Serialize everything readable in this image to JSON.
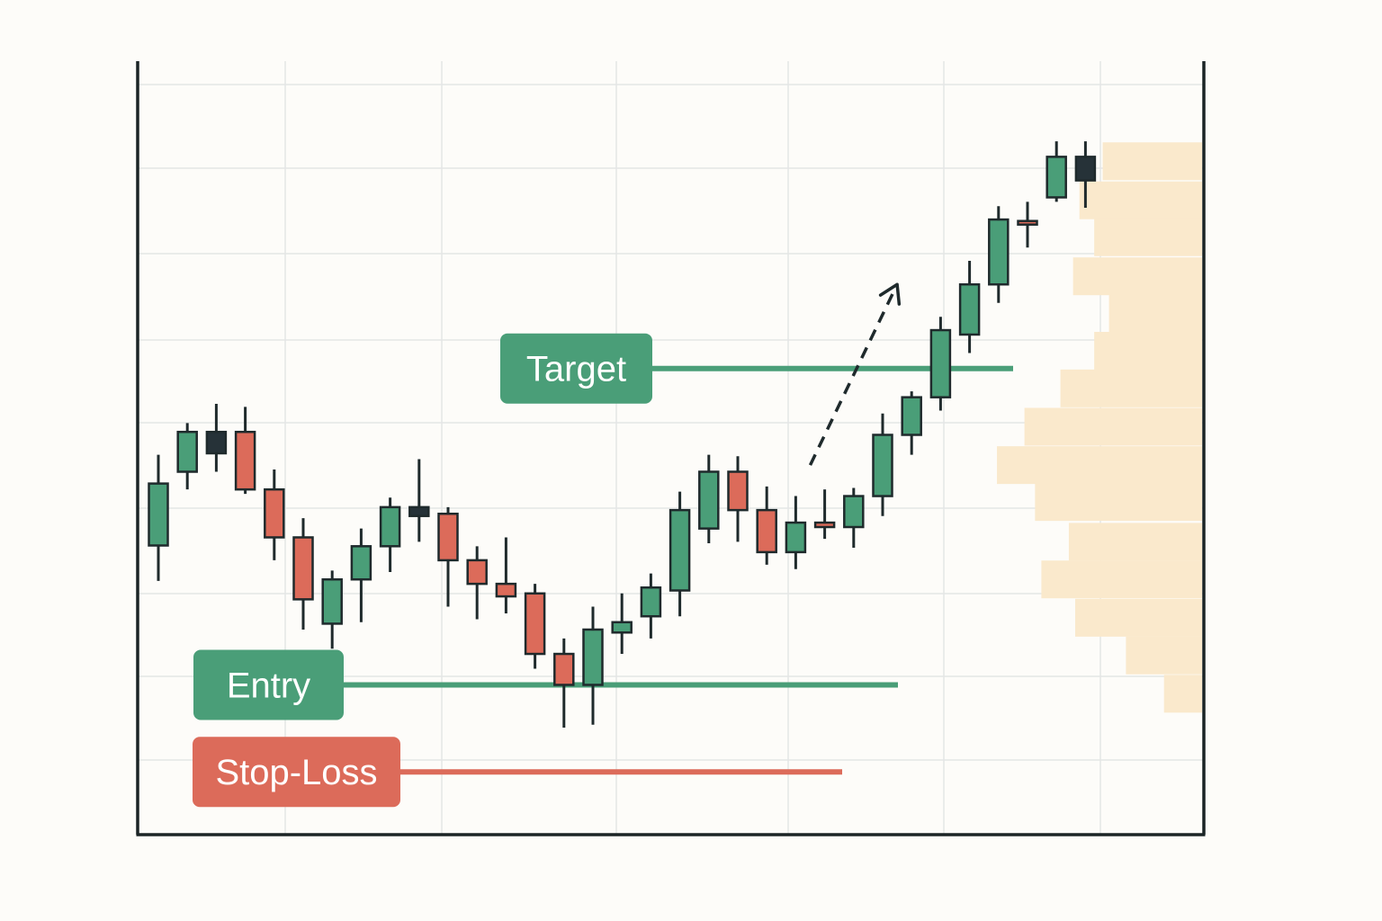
{
  "chart_data": {
    "type": "candlestick",
    "title": "",
    "xlabel": "",
    "ylabel": "",
    "ylim": [
      0,
      100
    ],
    "grid": true,
    "colors": {
      "up": "#4a9e78",
      "down": "#dc6b5a",
      "neutral": "#263238",
      "outline": "#1f2a2c",
      "target": "#4a9e78",
      "entry": "#4a9e78",
      "stop_loss": "#dc6b5a",
      "volume_profile": "#fae9cc",
      "grid": "#e4e6e6",
      "axis": "#1b2426"
    },
    "candles": [
      {
        "open": 37.5,
        "high": 49.8,
        "low": 32.7,
        "close": 45.9
      },
      {
        "open": 47.5,
        "high": 54.1,
        "low": 45.1,
        "close": 52.9
      },
      {
        "open": 52.9,
        "high": 56.7,
        "low": 47.5,
        "close": 50.0,
        "kind": "neutral"
      },
      {
        "open": 52.9,
        "high": 56.3,
        "low": 44.5,
        "close": 45.1
      },
      {
        "open": 45.1,
        "high": 47.8,
        "low": 35.5,
        "close": 38.6
      },
      {
        "open": 38.6,
        "high": 41.2,
        "low": 26.1,
        "close": 30.2
      },
      {
        "open": 26.9,
        "high": 34.1,
        "low": 23.5,
        "close": 32.9
      },
      {
        "open": 32.9,
        "high": 39.8,
        "low": 27.1,
        "close": 37.4
      },
      {
        "open": 37.4,
        "high": 44.0,
        "low": 33.9,
        "close": 42.7
      },
      {
        "open": 42.7,
        "high": 49.2,
        "low": 38.0,
        "close": 41.5,
        "kind": "neutral"
      },
      {
        "open": 41.8,
        "high": 42.7,
        "low": 29.2,
        "close": 35.5
      },
      {
        "open": 35.5,
        "high": 37.4,
        "low": 27.5,
        "close": 32.3
      },
      {
        "open": 32.3,
        "high": 38.6,
        "low": 28.3,
        "close": 30.6
      },
      {
        "open": 31.0,
        "high": 32.3,
        "low": 20.8,
        "close": 22.8
      },
      {
        "open": 22.8,
        "high": 24.9,
        "low": 12.8,
        "close": 18.6
      },
      {
        "open": 18.6,
        "high": 29.2,
        "low": 13.2,
        "close": 26.1
      },
      {
        "open": 25.7,
        "high": 31.0,
        "low": 22.8,
        "close": 27.1
      },
      {
        "open": 27.9,
        "high": 33.7,
        "low": 24.9,
        "close": 31.8
      },
      {
        "open": 31.4,
        "high": 44.8,
        "low": 27.9,
        "close": 42.3
      },
      {
        "open": 39.8,
        "high": 49.8,
        "low": 37.8,
        "close": 47.5
      },
      {
        "open": 47.5,
        "high": 49.6,
        "low": 38.0,
        "close": 42.3
      },
      {
        "open": 42.3,
        "high": 45.5,
        "low": 34.9,
        "close": 36.6
      },
      {
        "open": 36.6,
        "high": 44.2,
        "low": 34.3,
        "close": 40.6
      },
      {
        "open": 40.6,
        "high": 45.1,
        "low": 38.4,
        "close": 40.0
      },
      {
        "open": 40.0,
        "high": 45.3,
        "low": 37.2,
        "close": 44.2
      },
      {
        "open": 44.2,
        "high": 55.4,
        "low": 41.5,
        "close": 52.5
      },
      {
        "open": 52.5,
        "high": 58.4,
        "low": 49.8,
        "close": 57.6
      },
      {
        "open": 57.6,
        "high": 68.5,
        "low": 55.8,
        "close": 66.7
      },
      {
        "open": 66.1,
        "high": 76.1,
        "low": 63.6,
        "close": 72.9
      },
      {
        "open": 72.9,
        "high": 83.5,
        "low": 70.4,
        "close": 81.7
      },
      {
        "open": 81.5,
        "high": 84.1,
        "low": 77.9,
        "close": 81.1
      },
      {
        "open": 84.7,
        "high": 92.3,
        "low": 84.1,
        "close": 90.2
      },
      {
        "open": 87.0,
        "high": 92.3,
        "low": 83.3,
        "close": 90.2,
        "kind": "neutral"
      }
    ],
    "levels": [
      {
        "id": "target",
        "label": "Target",
        "value": 61.5
      },
      {
        "id": "entry",
        "label": "Entry",
        "value": 18.6
      },
      {
        "id": "stop_loss",
        "label": "Stop-Loss",
        "value": 6.8
      }
    ],
    "trend_arrow": {
      "from_index": 22.5,
      "from_value": 48.4,
      "to_index": 25.5,
      "to_value": 72.9
    },
    "volume_profile": [
      {
        "price": 89.6,
        "volume": 0.47
      },
      {
        "price": 84.3,
        "volume": 0.58
      },
      {
        "price": 79.3,
        "volume": 0.51
      },
      {
        "price": 74.0,
        "volume": 0.61
      },
      {
        "price": 69.0,
        "volume": 0.44
      },
      {
        "price": 63.9,
        "volume": 0.51
      },
      {
        "price": 58.8,
        "volume": 0.67
      },
      {
        "price": 53.6,
        "volume": 0.84
      },
      {
        "price": 48.4,
        "volume": 0.97
      },
      {
        "price": 43.4,
        "volume": 0.79
      },
      {
        "price": 38.0,
        "volume": 0.63
      },
      {
        "price": 32.9,
        "volume": 0.76
      },
      {
        "price": 27.7,
        "volume": 0.6
      },
      {
        "price": 22.6,
        "volume": 0.36
      },
      {
        "price": 17.4,
        "volume": 0.18
      }
    ]
  }
}
